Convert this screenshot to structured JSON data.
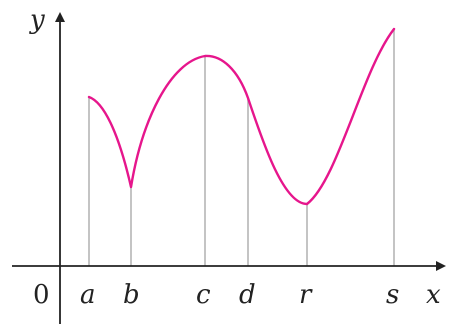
{
  "axes": {
    "x_label": "x",
    "y_label": "y",
    "origin_label": "0"
  },
  "points": [
    {
      "name": "a",
      "label": "a"
    },
    {
      "name": "b",
      "label": "b"
    },
    {
      "name": "c",
      "label": "c"
    },
    {
      "name": "d",
      "label": "d"
    },
    {
      "name": "r",
      "label": "r"
    },
    {
      "name": "s",
      "label": "s"
    }
  ],
  "colors": {
    "curve": "#e6168c",
    "axes": "#222222",
    "guides": "#b5b5b5"
  }
}
